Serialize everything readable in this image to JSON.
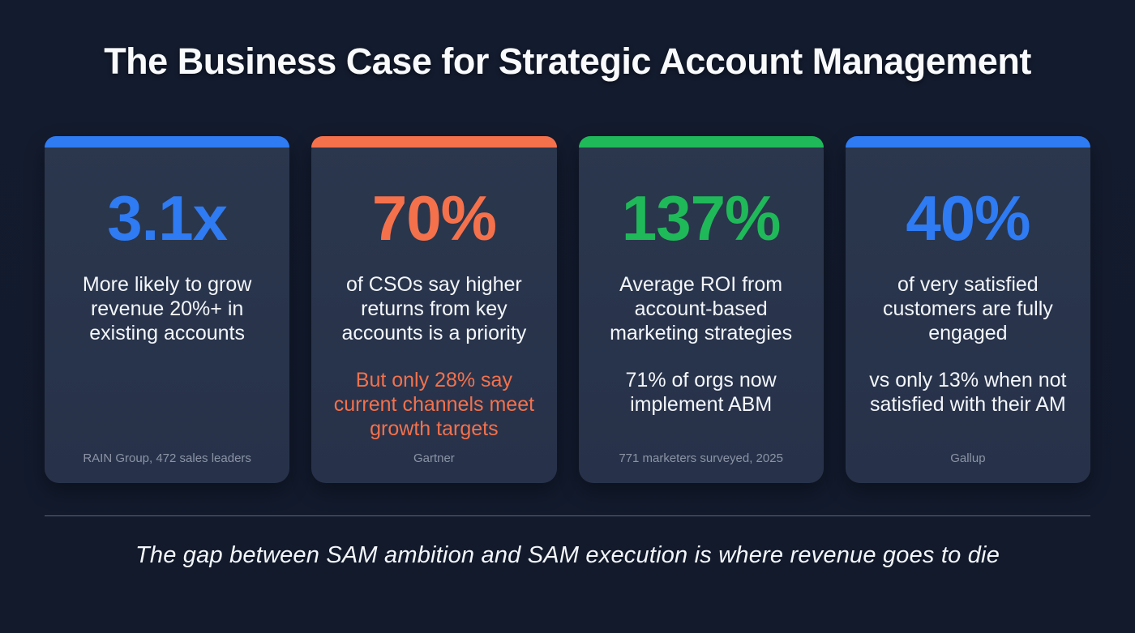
{
  "title": "The Business Case for Strategic Account Management",
  "cards": [
    {
      "stat": "3.1x",
      "accent_color": "#2e7bf3",
      "description": "More likely to grow revenue 20%+ in existing accounts",
      "source": "RAIN Group, 472 sales leaders"
    },
    {
      "stat": "70%",
      "accent_color": "#f4714c",
      "description": "of CSOs say higher returns from key accounts is a priority",
      "highlight": "But only 28% say current channels meet growth targets",
      "source": "Gartner"
    },
    {
      "stat": "137%",
      "accent_color": "#1fb959",
      "description": "Average ROI from account-based marketing strategies",
      "secondary": "71% of orgs now implement ABM",
      "source": "771 marketers surveyed, 2025"
    },
    {
      "stat": "40%",
      "accent_color": "#2e7bf3",
      "description": "of very satisfied customers are fully engaged",
      "secondary": "vs only 13% when not satisfied with their AM",
      "source": "Gallup"
    }
  ],
  "footer": {
    "quote": "The gap between SAM ambition and SAM execution is where revenue goes to die"
  }
}
